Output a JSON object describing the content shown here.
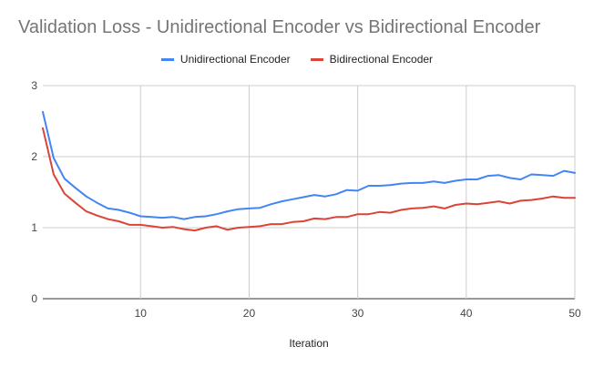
{
  "chart_data": {
    "type": "line",
    "title": "Validation Loss - Unidirectional Encoder vs Bidirectional Encoder",
    "xlabel": "Iteration",
    "ylabel": "",
    "xlim": [
      1,
      50
    ],
    "ylim": [
      0,
      3
    ],
    "x_ticks": [
      10,
      20,
      30,
      40,
      50
    ],
    "y_ticks": [
      0,
      1,
      2,
      3
    ],
    "grid": true,
    "legend_position": "top",
    "x": [
      1,
      2,
      3,
      4,
      5,
      6,
      7,
      8,
      9,
      10,
      11,
      12,
      13,
      14,
      15,
      16,
      17,
      18,
      19,
      20,
      21,
      22,
      23,
      24,
      25,
      26,
      27,
      28,
      29,
      30,
      31,
      32,
      33,
      34,
      35,
      36,
      37,
      38,
      39,
      40,
      41,
      42,
      43,
      44,
      45,
      46,
      47,
      48,
      49,
      50
    ],
    "series": [
      {
        "name": "Unidirectional Encoder",
        "color": "#4285f4",
        "values": [
          2.63,
          1.98,
          1.69,
          1.56,
          1.44,
          1.35,
          1.27,
          1.25,
          1.21,
          1.16,
          1.15,
          1.14,
          1.15,
          1.12,
          1.15,
          1.16,
          1.19,
          1.23,
          1.26,
          1.27,
          1.28,
          1.33,
          1.37,
          1.4,
          1.43,
          1.46,
          1.44,
          1.47,
          1.53,
          1.52,
          1.59,
          1.59,
          1.6,
          1.62,
          1.63,
          1.63,
          1.65,
          1.63,
          1.66,
          1.68,
          1.68,
          1.73,
          1.74,
          1.7,
          1.68,
          1.75,
          1.74,
          1.73,
          1.8,
          1.77
        ]
      },
      {
        "name": "Bidirectional Encoder",
        "color": "#db4437",
        "values": [
          2.4,
          1.75,
          1.48,
          1.35,
          1.23,
          1.17,
          1.12,
          1.09,
          1.04,
          1.04,
          1.02,
          1.0,
          1.01,
          0.98,
          0.96,
          1.0,
          1.02,
          0.97,
          1.0,
          1.01,
          1.02,
          1.05,
          1.05,
          1.08,
          1.09,
          1.13,
          1.12,
          1.15,
          1.15,
          1.19,
          1.19,
          1.22,
          1.21,
          1.25,
          1.27,
          1.28,
          1.3,
          1.27,
          1.32,
          1.34,
          1.33,
          1.35,
          1.37,
          1.34,
          1.38,
          1.39,
          1.41,
          1.44,
          1.42,
          1.42
        ]
      }
    ]
  }
}
